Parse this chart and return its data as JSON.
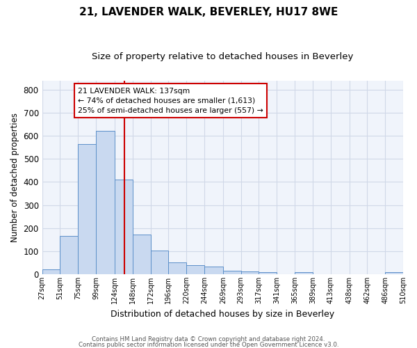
{
  "title1": "21, LAVENDER WALK, BEVERLEY, HU17 8WE",
  "title2": "Size of property relative to detached houses in Beverley",
  "xlabel": "Distribution of detached houses by size in Beverley",
  "ylabel": "Number of detached properties",
  "bin_labels": [
    "27sqm",
    "51sqm",
    "75sqm",
    "99sqm",
    "124sqm",
    "148sqm",
    "172sqm",
    "196sqm",
    "220sqm",
    "244sqm",
    "269sqm",
    "293sqm",
    "317sqm",
    "341sqm",
    "365sqm",
    "389sqm",
    "413sqm",
    "438sqm",
    "462sqm",
    "486sqm",
    "510sqm"
  ],
  "bin_edges": [
    27,
    51,
    75,
    99,
    124,
    148,
    172,
    196,
    220,
    244,
    269,
    293,
    317,
    341,
    365,
    389,
    413,
    438,
    462,
    486,
    510
  ],
  "bar_heights": [
    20,
    165,
    565,
    620,
    410,
    172,
    103,
    52,
    40,
    32,
    15,
    12,
    10,
    0,
    8,
    0,
    0,
    0,
    0,
    8
  ],
  "bar_color": "#c9d9f0",
  "bar_edge_color": "#5b8fc9",
  "vline_x": 137,
  "vline_color": "#cc0000",
  "annotation_text": "21 LAVENDER WALK: 137sqm\n← 74% of detached houses are smaller (1,613)\n25% of semi-detached houses are larger (557) →",
  "annotation_box_color": "#ffffff",
  "annotation_box_edge_color": "#cc0000",
  "ylim": [
    0,
    840
  ],
  "yticks": [
    0,
    100,
    200,
    300,
    400,
    500,
    600,
    700,
    800
  ],
  "footer1": "Contains HM Land Registry data © Crown copyright and database right 2024.",
  "footer2": "Contains public sector information licensed under the Open Government Licence v3.0.",
  "background_color": "#ffffff",
  "plot_bg_color": "#f0f4fb",
  "grid_color": "#d0d8e8",
  "title1_fontsize": 11,
  "title2_fontsize": 9.5
}
